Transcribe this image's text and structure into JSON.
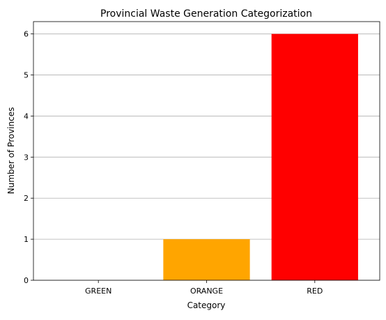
{
  "chart_data": {
    "type": "bar",
    "title": "Provincial Waste Generation Categorization",
    "xlabel": "Category",
    "ylabel": "Number of Provinces",
    "categories": [
      "GREEN",
      "ORANGE",
      "RED"
    ],
    "values": [
      0,
      1,
      6
    ],
    "colors": [
      "#008000",
      "#ffa500",
      "#ff0000"
    ],
    "ylim": [
      0,
      6.3
    ],
    "yticks": [
      "0",
      "1",
      "2",
      "3",
      "4",
      "5",
      "6"
    ],
    "grid": "y-axis only",
    "legend": "none"
  }
}
